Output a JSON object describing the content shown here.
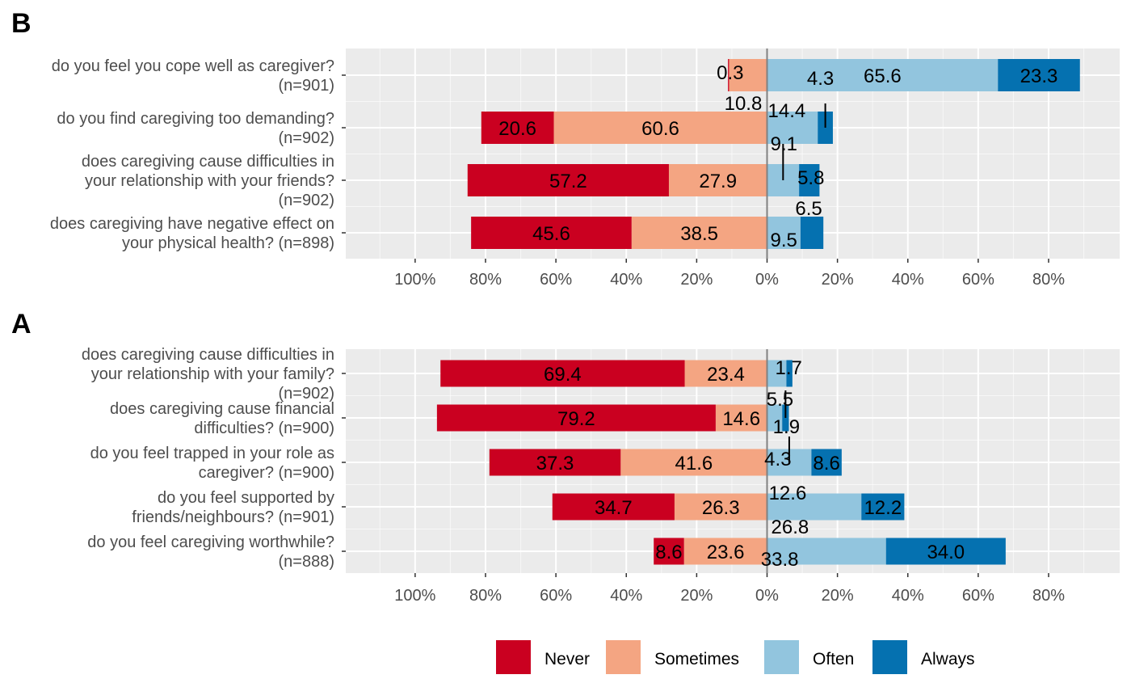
{
  "chart_data": [
    {
      "type": "bar",
      "orientation": "horizontal-diverging",
      "panel": "B",
      "xlim": [
        -115,
        99
      ],
      "x_ticks": [
        -100,
        -80,
        -60,
        -40,
        -20,
        0,
        20,
        40,
        60,
        80
      ],
      "x_tick_labels": [
        "100%",
        "80%",
        "60%",
        "40%",
        "20%",
        "0%",
        "20%",
        "40%",
        "60%",
        "80%"
      ],
      "grid": true,
      "questions": [
        {
          "label_lines": [
            "do you feel you cope well as caregiver?",
            "(n=901)"
          ],
          "never": 0.3,
          "sometimes": 10.8,
          "often": 65.6,
          "always": 23.3,
          "labels": {
            "never": "0.3",
            "sometimes": "10.8",
            "often": "65.6",
            "always": "23.3"
          }
        },
        {
          "label_lines": [
            "do you find caregiving too demanding?",
            "(n=902)"
          ],
          "never": 20.6,
          "sometimes": 60.6,
          "often": 14.4,
          "always": 4.3,
          "labels": {
            "never": "20.6",
            "sometimes": "60.6",
            "often": "14.4",
            "always": "4.3"
          }
        },
        {
          "label_lines": [
            "does caregiving cause difficulties in",
            "your relationship with your friends?",
            "(n=902)"
          ],
          "never": 57.2,
          "sometimes": 27.9,
          "often": 9.1,
          "always": 5.8,
          "labels": {
            "never": "57.2",
            "sometimes": "27.9",
            "often": "9.1",
            "always": "5.8"
          }
        },
        {
          "label_lines": [
            "does caregiving have negative effect on",
            "your physical health? (n=898)"
          ],
          "never": 45.6,
          "sometimes": 38.5,
          "often": 9.5,
          "always": 6.5,
          "labels": {
            "never": "45.6",
            "sometimes": "38.5",
            "often": "9.5",
            "always": "6.5"
          }
        }
      ]
    },
    {
      "type": "bar",
      "orientation": "horizontal-diverging",
      "panel": "A",
      "xlim": [
        -115,
        99
      ],
      "x_ticks": [
        -100,
        -80,
        -60,
        -40,
        -20,
        0,
        20,
        40,
        60,
        80
      ],
      "x_tick_labels": [
        "100%",
        "80%",
        "60%",
        "40%",
        "20%",
        "0%",
        "20%",
        "40%",
        "60%",
        "80%"
      ],
      "grid": true,
      "questions": [
        {
          "label_lines": [
            "does caregiving cause difficulties in",
            "your relationship with your family?",
            "(n=902)"
          ],
          "never": 69.4,
          "sometimes": 23.4,
          "often": 5.5,
          "always": 1.7,
          "labels": {
            "never": "69.4",
            "sometimes": "23.4",
            "often": "5.5",
            "always": "1.7"
          }
        },
        {
          "label_lines": [
            "does caregiving cause financial",
            "difficulties? (n=900)"
          ],
          "never": 79.2,
          "sometimes": 14.6,
          "often": 4.3,
          "always": 1.9,
          "labels": {
            "never": "79.2",
            "sometimes": "14.6",
            "often": "4.3",
            "always": "1.9"
          }
        },
        {
          "label_lines": [
            "do you feel trapped in your role as",
            "caregiver? (n=900)"
          ],
          "never": 37.3,
          "sometimes": 41.6,
          "often": 12.6,
          "always": 8.6,
          "labels": {
            "never": "37.3",
            "sometimes": "41.6",
            "often": "12.6",
            "always": "8.6"
          }
        },
        {
          "label_lines": [
            "do you feel supported by",
            "friends/neighbours? (n=901)"
          ],
          "never": 34.7,
          "sometimes": 26.3,
          "often": 26.8,
          "always": 12.2,
          "labels": {
            "never": "34.7",
            "sometimes": "26.3",
            "often": "26.8",
            "always": "12.2"
          }
        },
        {
          "label_lines": [
            "do you feel caregiving worthwhile?",
            "(n=888)"
          ],
          "never": 8.6,
          "sometimes": 23.6,
          "often": 33.8,
          "always": 34.0,
          "labels": {
            "never": "8.6",
            "sometimes": "23.6",
            "often": "33.8",
            "always": "34.0"
          }
        }
      ]
    }
  ],
  "legend": {
    "placement": "bottom",
    "items": [
      {
        "key": "never",
        "label": "Never",
        "color": "#ca0020"
      },
      {
        "key": "sometimes",
        "label": "Sometimes",
        "color": "#f4a582"
      },
      {
        "key": "often",
        "label": "Often",
        "color": "#92c5de"
      },
      {
        "key": "always",
        "label": "Always",
        "color": "#0571b0"
      }
    ]
  },
  "colors": {
    "panel_background": "#ebebeb",
    "grid_major": "#ffffff",
    "zero_line": "#808080"
  }
}
